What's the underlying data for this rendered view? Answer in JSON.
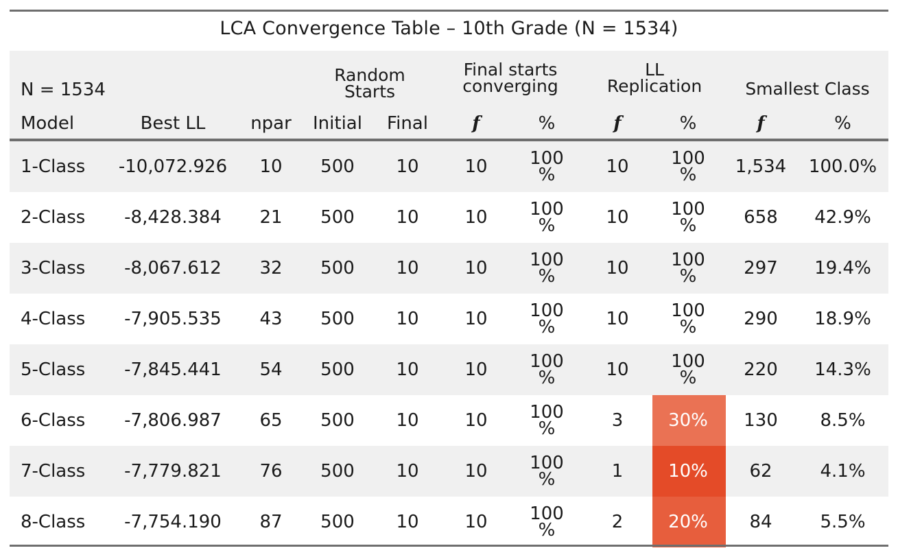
{
  "title": "LCA Convergence Table – 10th Grade (N = 1534)",
  "header": {
    "n_label": "N = 1534",
    "random_starts_line1": "Random",
    "random_starts_line2": "Starts",
    "final_conv_line1": "Final starts",
    "final_conv_line2": "converging",
    "ll_rep_line1": "LL",
    "ll_rep_line2": "Replication",
    "smallest_class": "Smallest Class",
    "columns": [
      "Model",
      "Best LL",
      "npar",
      "Initial",
      "Final",
      "f",
      "%",
      "f",
      "%",
      "f",
      "%"
    ]
  },
  "rows": [
    {
      "model": "1-Class",
      "best_ll": "-10,072.926",
      "npar": "10",
      "initial": "500",
      "final": "10",
      "conv_f": "10",
      "conv_pct_top": "100",
      "conv_pct_bot": "%",
      "rep_f": "10",
      "rep_pct": "",
      "rep_pct_top": "100",
      "rep_pct_bot": "%",
      "small_f": "1,534",
      "small_pct": "100.0%"
    },
    {
      "model": "2-Class",
      "best_ll": "-8,428.384",
      "npar": "21",
      "initial": "500",
      "final": "10",
      "conv_f": "10",
      "conv_pct_top": "100",
      "conv_pct_bot": "%",
      "rep_f": "10",
      "rep_pct": "",
      "rep_pct_top": "100",
      "rep_pct_bot": "%",
      "small_f": "658",
      "small_pct": "42.9%"
    },
    {
      "model": "3-Class",
      "best_ll": "-8,067.612",
      "npar": "32",
      "initial": "500",
      "final": "10",
      "conv_f": "10",
      "conv_pct_top": "100",
      "conv_pct_bot": "%",
      "rep_f": "10",
      "rep_pct": "",
      "rep_pct_top": "100",
      "rep_pct_bot": "%",
      "small_f": "297",
      "small_pct": "19.4%"
    },
    {
      "model": "4-Class",
      "best_ll": "-7,905.535",
      "npar": "43",
      "initial": "500",
      "final": "10",
      "conv_f": "10",
      "conv_pct_top": "100",
      "conv_pct_bot": "%",
      "rep_f": "10",
      "rep_pct": "",
      "rep_pct_top": "100",
      "rep_pct_bot": "%",
      "small_f": "290",
      "small_pct": "18.9%"
    },
    {
      "model": "5-Class",
      "best_ll": "-7,845.441",
      "npar": "54",
      "initial": "500",
      "final": "10",
      "conv_f": "10",
      "conv_pct_top": "100",
      "conv_pct_bot": "%",
      "rep_f": "10",
      "rep_pct": "",
      "rep_pct_top": "100",
      "rep_pct_bot": "%",
      "small_f": "220",
      "small_pct": "14.3%"
    },
    {
      "model": "6-Class",
      "best_ll": "-7,806.987",
      "npar": "65",
      "initial": "500",
      "final": "10",
      "conv_f": "10",
      "conv_pct_top": "100",
      "conv_pct_bot": "%",
      "rep_f": "3",
      "rep_pct": "30%",
      "rep_pct_top": "",
      "rep_pct_bot": "",
      "small_f": "130",
      "small_pct": "8.5%",
      "rep_color": "#ea7254"
    },
    {
      "model": "7-Class",
      "best_ll": "-7,779.821",
      "npar": "76",
      "initial": "500",
      "final": "10",
      "conv_f": "10",
      "conv_pct_top": "100",
      "conv_pct_bot": "%",
      "rep_f": "1",
      "rep_pct": "10%",
      "rep_pct_top": "",
      "rep_pct_bot": "",
      "small_f": "62",
      "small_pct": "4.1%",
      "rep_color": "#e44b28"
    },
    {
      "model": "8-Class",
      "best_ll": "-7,754.190",
      "npar": "87",
      "initial": "500",
      "final": "10",
      "conv_f": "10",
      "conv_pct_top": "100",
      "conv_pct_bot": "%",
      "rep_f": "2",
      "rep_pct": "20%",
      "rep_pct_top": "",
      "rep_pct_bot": "",
      "small_f": "84",
      "small_pct": "5.5%",
      "rep_color": "#e75e3d"
    }
  ],
  "colors": {
    "rule": "#6e6e6e",
    "band": "#f0f0f0",
    "heat_10": "#e44b28",
    "heat_20": "#e75e3d",
    "heat_30": "#ea7254"
  }
}
